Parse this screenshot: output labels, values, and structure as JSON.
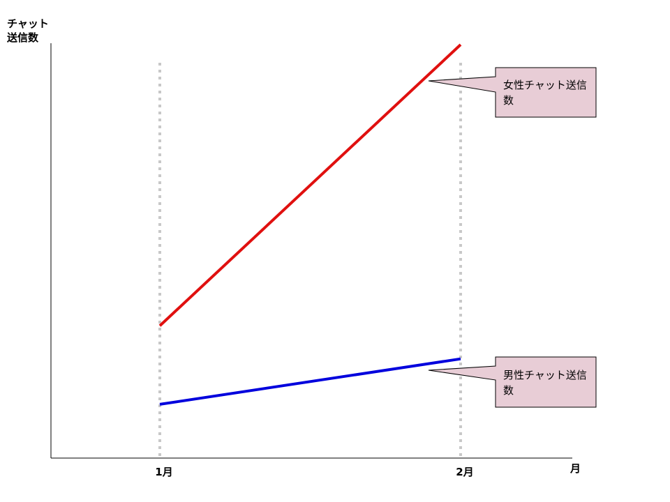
{
  "chart_data": {
    "type": "line",
    "title": "",
    "xlabel": "月",
    "ylabel": "チャット送信数",
    "categories": [
      "1月",
      "2月"
    ],
    "yaxis_ticks": "none",
    "grid": "vertical-dotted",
    "legend": "callouts",
    "series": [
      {
        "name": "女性チャット送信数",
        "values": [
          32,
          100
        ],
        "color": "#e0100f"
      },
      {
        "name": "男性チャット送信数",
        "values": [
          13,
          24
        ],
        "color": "#0000dd"
      }
    ],
    "ylim": [
      0,
      100
    ]
  },
  "colors": {
    "callout_fill": "#e8cdd6",
    "grid": "#c8c8c8"
  }
}
